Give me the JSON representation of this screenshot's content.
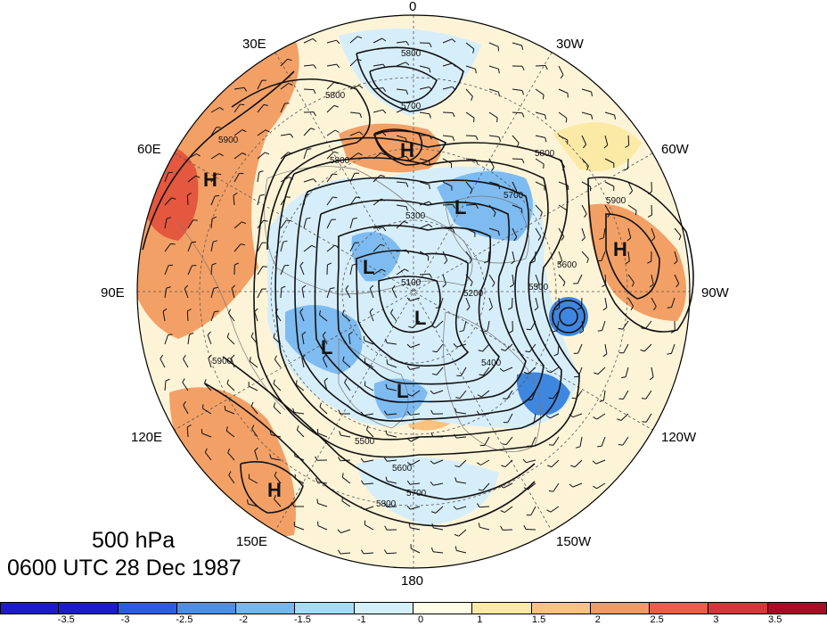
{
  "title": {
    "level": "500 hPa",
    "datetime": "0600 UTC 28 Dec 1987"
  },
  "longitude_labels": [
    "0",
    "30W",
    "60W",
    "90W",
    "120W",
    "150W",
    "180",
    "150E",
    "120E",
    "90E",
    "60E",
    "30E"
  ],
  "contour_labels": [
    "5800",
    "5700",
    "5800",
    "5900",
    "5800",
    "5600",
    "5700",
    "5800",
    "5900",
    "5500",
    "5300",
    "5100",
    "5200",
    "5400",
    "5500",
    "5600",
    "5700",
    "5800",
    "5900"
  ],
  "centers": [
    {
      "type": "H",
      "label": "H"
    },
    {
      "type": "H",
      "label": "H"
    },
    {
      "type": "H",
      "label": "H"
    },
    {
      "type": "H",
      "label": "H"
    },
    {
      "type": "L",
      "label": "L"
    },
    {
      "type": "L",
      "label": "L"
    },
    {
      "type": "L",
      "label": "L"
    },
    {
      "type": "L",
      "label": "L"
    },
    {
      "type": "L",
      "label": "L"
    }
  ],
  "colorbar": {
    "tick_labels": [
      "-3.5",
      "-3",
      "-2.5",
      "-2",
      "-1.5",
      "-1",
      "0",
      "1",
      "1.5",
      "2",
      "2.5",
      "3",
      "3.5"
    ],
    "colors": [
      "#1c1cc8",
      "#2a5ee0",
      "#4b8fe6",
      "#73b8f0",
      "#a3dcf6",
      "#d3f0fa",
      "#fdfde6",
      "#fbeaa6",
      "#f9c27e",
      "#f39a63",
      "#ea5f44",
      "#d4373a",
      "#a90c25"
    ]
  },
  "shading_colors": {
    "deep_blue": "#3f86df",
    "mid_blue": "#7ebbf0",
    "light_blue": "#d6eefa",
    "cream": "#fdf4d8",
    "orange": "#f3a066",
    "red": "#e4583f"
  }
}
